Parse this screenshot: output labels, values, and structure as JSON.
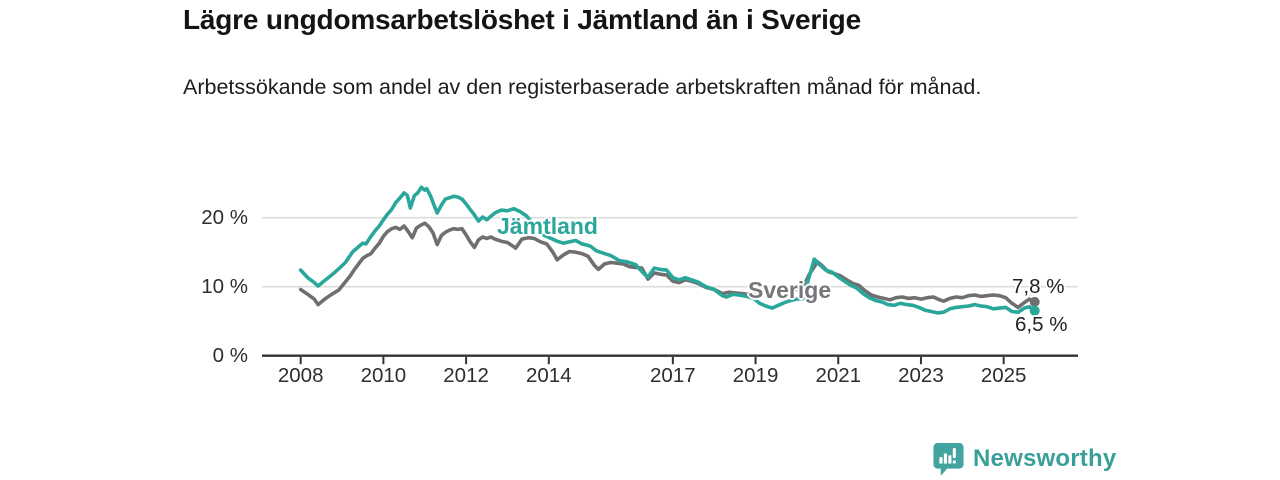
{
  "footer": {
    "brand": "Newsworthy"
  },
  "chart_data": {
    "type": "line",
    "title": "Lägre ungdomsarbetslöshet i Jämtland än i Sverige",
    "subtitle": "Arbetssökande som andel av den registerbaserade arbetskraften månad för månad.",
    "unit": "%",
    "legend": "inline-labels-at-line",
    "grid": true,
    "x_axis": {
      "tick_years": [
        2008,
        2010,
        2012,
        2014,
        2017,
        2019,
        2021,
        2023,
        2025
      ],
      "tick_labels": [
        "2008",
        "2010",
        "2012",
        "2014",
        "2017",
        "2019",
        "2021",
        "2023",
        "2025"
      ],
      "range": [
        2008,
        2025.75
      ]
    },
    "y_axis": {
      "ticks": [
        {
          "value": 0,
          "label": "0 %"
        },
        {
          "value": 10,
          "label": "10 %"
        },
        {
          "value": 20,
          "label": "20 %"
        }
      ],
      "range": [
        0,
        26
      ]
    },
    "series": [
      {
        "name": "Sverige",
        "color": "#6f6f6f",
        "label_color": "#75767a",
        "end_label": "7,8 %",
        "end_value": 7.8,
        "points": [
          [
            2008.0,
            9.6
          ],
          [
            2008.17,
            8.9
          ],
          [
            2008.33,
            8.2
          ],
          [
            2008.42,
            7.4
          ],
          [
            2008.58,
            8.2
          ],
          [
            2008.75,
            8.9
          ],
          [
            2008.92,
            9.5
          ],
          [
            2009.08,
            10.7
          ],
          [
            2009.2,
            11.6
          ],
          [
            2009.3,
            12.5
          ],
          [
            2009.4,
            13.3
          ],
          [
            2009.5,
            14.1
          ],
          [
            2009.6,
            14.5
          ],
          [
            2009.7,
            14.8
          ],
          [
            2009.8,
            15.6
          ],
          [
            2009.9,
            16.3
          ],
          [
            2010.0,
            17.3
          ],
          [
            2010.1,
            18.0
          ],
          [
            2010.2,
            18.4
          ],
          [
            2010.3,
            18.6
          ],
          [
            2010.4,
            18.3
          ],
          [
            2010.5,
            18.8
          ],
          [
            2010.6,
            18.0
          ],
          [
            2010.7,
            17.1
          ],
          [
            2010.8,
            18.5
          ],
          [
            2010.9,
            18.9
          ],
          [
            2011.0,
            19.2
          ],
          [
            2011.1,
            18.7
          ],
          [
            2011.2,
            17.8
          ],
          [
            2011.3,
            16.1
          ],
          [
            2011.4,
            17.4
          ],
          [
            2011.5,
            17.9
          ],
          [
            2011.6,
            18.2
          ],
          [
            2011.7,
            18.4
          ],
          [
            2011.8,
            18.3
          ],
          [
            2011.9,
            18.4
          ],
          [
            2012.0,
            17.5
          ],
          [
            2012.1,
            16.5
          ],
          [
            2012.2,
            15.7
          ],
          [
            2012.3,
            16.8
          ],
          [
            2012.4,
            17.2
          ],
          [
            2012.5,
            17.0
          ],
          [
            2012.6,
            17.2
          ],
          [
            2012.7,
            16.9
          ],
          [
            2012.85,
            16.6
          ],
          [
            2013.0,
            16.4
          ],
          [
            2013.1,
            16.0
          ],
          [
            2013.2,
            15.6
          ],
          [
            2013.35,
            16.9
          ],
          [
            2013.5,
            17.1
          ],
          [
            2013.65,
            17.0
          ],
          [
            2013.8,
            16.5
          ],
          [
            2013.95,
            16.2
          ],
          [
            2014.1,
            15.0
          ],
          [
            2014.2,
            13.9
          ],
          [
            2014.35,
            14.6
          ],
          [
            2014.5,
            15.1
          ],
          [
            2014.65,
            15.0
          ],
          [
            2014.8,
            14.8
          ],
          [
            2014.95,
            14.4
          ],
          [
            2015.1,
            13.1
          ],
          [
            2015.2,
            12.5
          ],
          [
            2015.35,
            13.3
          ],
          [
            2015.5,
            13.5
          ],
          [
            2015.65,
            13.4
          ],
          [
            2015.8,
            13.3
          ],
          [
            2015.95,
            12.9
          ],
          [
            2016.1,
            12.8
          ],
          [
            2016.25,
            12.7
          ],
          [
            2016.4,
            11.1
          ],
          [
            2016.55,
            12.0
          ],
          [
            2016.7,
            11.8
          ],
          [
            2016.85,
            11.7
          ],
          [
            2017.0,
            10.8
          ],
          [
            2017.15,
            10.6
          ],
          [
            2017.3,
            11.0
          ],
          [
            2017.45,
            10.8
          ],
          [
            2017.6,
            10.5
          ],
          [
            2017.8,
            9.9
          ],
          [
            2018.0,
            9.6
          ],
          [
            2018.2,
            9.0
          ],
          [
            2018.35,
            9.2
          ],
          [
            2018.5,
            9.1
          ],
          [
            2018.65,
            9.0
          ],
          [
            2018.8,
            8.9
          ],
          [
            2018.95,
            9.2
          ],
          [
            2019.1,
            9.3
          ],
          [
            2019.25,
            9.2
          ],
          [
            2019.4,
            9.3
          ],
          [
            2019.55,
            9.2
          ],
          [
            2019.7,
            9.4
          ],
          [
            2019.85,
            9.5
          ],
          [
            2020.0,
            9.6
          ],
          [
            2020.15,
            9.9
          ],
          [
            2020.3,
            11.8
          ],
          [
            2020.5,
            13.6
          ],
          [
            2020.6,
            13.1
          ],
          [
            2020.75,
            12.2
          ],
          [
            2020.9,
            11.9
          ],
          [
            2021.05,
            11.6
          ],
          [
            2021.2,
            11.0
          ],
          [
            2021.35,
            10.5
          ],
          [
            2021.5,
            10.2
          ],
          [
            2021.65,
            9.4
          ],
          [
            2021.8,
            8.8
          ],
          [
            2021.95,
            8.5
          ],
          [
            2022.1,
            8.3
          ],
          [
            2022.25,
            8.1
          ],
          [
            2022.4,
            8.4
          ],
          [
            2022.55,
            8.5
          ],
          [
            2022.7,
            8.3
          ],
          [
            2022.85,
            8.4
          ],
          [
            2023.0,
            8.2
          ],
          [
            2023.15,
            8.4
          ],
          [
            2023.3,
            8.5
          ],
          [
            2023.45,
            8.1
          ],
          [
            2023.55,
            7.9
          ],
          [
            2023.7,
            8.3
          ],
          [
            2023.85,
            8.5
          ],
          [
            2024.0,
            8.4
          ],
          [
            2024.15,
            8.7
          ],
          [
            2024.3,
            8.8
          ],
          [
            2024.45,
            8.6
          ],
          [
            2024.6,
            8.7
          ],
          [
            2024.75,
            8.8
          ],
          [
            2024.9,
            8.7
          ],
          [
            2025.05,
            8.4
          ],
          [
            2025.2,
            7.6
          ],
          [
            2025.35,
            7.0
          ],
          [
            2025.5,
            7.7
          ],
          [
            2025.62,
            8.2
          ],
          [
            2025.75,
            7.8
          ]
        ]
      },
      {
        "name": "Jämtland",
        "color": "#2aa79b",
        "label_color": "#2aa79b",
        "end_label": "6,5 %",
        "end_value": 6.5,
        "points": [
          [
            2008.0,
            12.4
          ],
          [
            2008.17,
            11.3
          ],
          [
            2008.33,
            10.6
          ],
          [
            2008.42,
            10.1
          ],
          [
            2008.58,
            10.9
          ],
          [
            2008.75,
            11.7
          ],
          [
            2008.92,
            12.6
          ],
          [
            2009.08,
            13.5
          ],
          [
            2009.25,
            15.0
          ],
          [
            2009.42,
            15.9
          ],
          [
            2009.5,
            16.3
          ],
          [
            2009.58,
            16.2
          ],
          [
            2009.7,
            17.3
          ],
          [
            2009.8,
            18.1
          ],
          [
            2009.9,
            18.8
          ],
          [
            2010.0,
            19.7
          ],
          [
            2010.1,
            20.5
          ],
          [
            2010.2,
            21.2
          ],
          [
            2010.3,
            22.2
          ],
          [
            2010.42,
            23.0
          ],
          [
            2010.5,
            23.6
          ],
          [
            2010.58,
            23.2
          ],
          [
            2010.65,
            21.4
          ],
          [
            2010.75,
            23.2
          ],
          [
            2010.83,
            23.6
          ],
          [
            2010.92,
            24.4
          ],
          [
            2011.0,
            24.0
          ],
          [
            2011.05,
            24.2
          ],
          [
            2011.15,
            23.0
          ],
          [
            2011.22,
            21.9
          ],
          [
            2011.3,
            20.7
          ],
          [
            2011.4,
            21.8
          ],
          [
            2011.5,
            22.7
          ],
          [
            2011.6,
            22.9
          ],
          [
            2011.7,
            23.1
          ],
          [
            2011.8,
            23.0
          ],
          [
            2011.9,
            22.7
          ],
          [
            2012.0,
            22.0
          ],
          [
            2012.1,
            21.2
          ],
          [
            2012.2,
            20.4
          ],
          [
            2012.3,
            19.5
          ],
          [
            2012.4,
            20.1
          ],
          [
            2012.5,
            19.7
          ],
          [
            2012.6,
            20.2
          ],
          [
            2012.7,
            20.7
          ],
          [
            2012.85,
            21.1
          ],
          [
            2013.0,
            21.0
          ],
          [
            2013.15,
            21.3
          ],
          [
            2013.3,
            20.9
          ],
          [
            2013.45,
            20.3
          ],
          [
            2013.6,
            19.3
          ],
          [
            2013.75,
            18.2
          ],
          [
            2013.9,
            17.4
          ],
          [
            2014.05,
            17.0
          ],
          [
            2014.2,
            16.6
          ],
          [
            2014.35,
            16.3
          ],
          [
            2014.5,
            16.5
          ],
          [
            2014.65,
            16.7
          ],
          [
            2014.8,
            16.2
          ],
          [
            2015.0,
            15.9
          ],
          [
            2015.15,
            15.2
          ],
          [
            2015.3,
            14.9
          ],
          [
            2015.5,
            14.5
          ],
          [
            2015.7,
            13.8
          ],
          [
            2015.9,
            13.6
          ],
          [
            2016.1,
            13.2
          ],
          [
            2016.3,
            11.9
          ],
          [
            2016.4,
            11.4
          ],
          [
            2016.55,
            12.7
          ],
          [
            2016.7,
            12.5
          ],
          [
            2016.85,
            12.4
          ],
          [
            2017.0,
            11.3
          ],
          [
            2017.15,
            11.0
          ],
          [
            2017.3,
            11.3
          ],
          [
            2017.45,
            11.0
          ],
          [
            2017.6,
            10.7
          ],
          [
            2017.8,
            10.0
          ],
          [
            2018.0,
            9.6
          ],
          [
            2018.2,
            8.7
          ],
          [
            2018.3,
            8.5
          ],
          [
            2018.45,
            8.9
          ],
          [
            2018.6,
            8.8
          ],
          [
            2018.78,
            8.6
          ],
          [
            2018.95,
            8.3
          ],
          [
            2019.1,
            7.6
          ],
          [
            2019.25,
            7.2
          ],
          [
            2019.4,
            6.9
          ],
          [
            2019.55,
            7.3
          ],
          [
            2019.7,
            7.7
          ],
          [
            2019.85,
            8.0
          ],
          [
            2020.0,
            8.2
          ],
          [
            2020.15,
            8.3
          ],
          [
            2020.3,
            11.5
          ],
          [
            2020.42,
            14.0
          ],
          [
            2020.55,
            13.2
          ],
          [
            2020.7,
            12.4
          ],
          [
            2020.85,
            12.1
          ],
          [
            2021.0,
            11.4
          ],
          [
            2021.15,
            10.8
          ],
          [
            2021.3,
            10.2
          ],
          [
            2021.45,
            9.8
          ],
          [
            2021.6,
            9.0
          ],
          [
            2021.75,
            8.4
          ],
          [
            2021.9,
            8.0
          ],
          [
            2022.05,
            7.8
          ],
          [
            2022.2,
            7.4
          ],
          [
            2022.35,
            7.3
          ],
          [
            2022.5,
            7.6
          ],
          [
            2022.65,
            7.4
          ],
          [
            2022.8,
            7.3
          ],
          [
            2022.95,
            7.0
          ],
          [
            2023.1,
            6.6
          ],
          [
            2023.25,
            6.4
          ],
          [
            2023.4,
            6.2
          ],
          [
            2023.55,
            6.3
          ],
          [
            2023.7,
            6.8
          ],
          [
            2023.85,
            7.0
          ],
          [
            2024.0,
            7.1
          ],
          [
            2024.15,
            7.2
          ],
          [
            2024.3,
            7.4
          ],
          [
            2024.45,
            7.2
          ],
          [
            2024.6,
            7.1
          ],
          [
            2024.75,
            6.8
          ],
          [
            2024.9,
            6.9
          ],
          [
            2025.05,
            7.0
          ],
          [
            2025.2,
            6.4
          ],
          [
            2025.35,
            6.3
          ],
          [
            2025.5,
            6.9
          ],
          [
            2025.62,
            7.1
          ],
          [
            2025.75,
            6.5
          ]
        ]
      }
    ]
  }
}
